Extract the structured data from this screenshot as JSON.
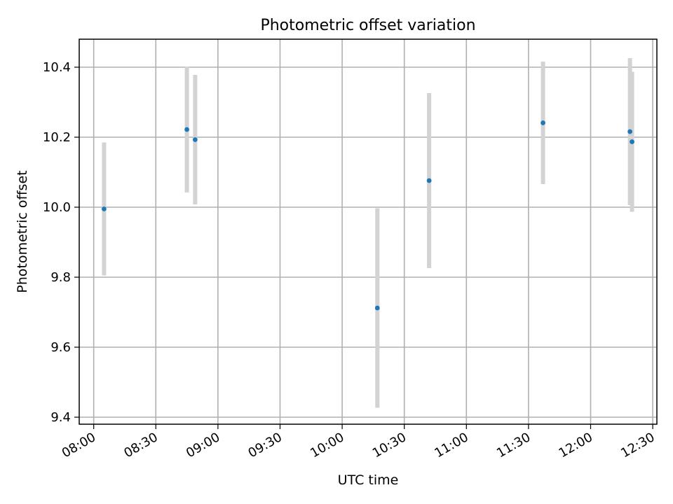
{
  "chart_data": {
    "type": "scatter",
    "title": "Photometric offset variation",
    "xlabel": "UTC time",
    "ylabel": "Photometric offset",
    "x_ticks": [
      "08:00",
      "08:30",
      "09:00",
      "09:30",
      "10:00",
      "10:30",
      "11:00",
      "11:30",
      "12:00",
      "12:30"
    ],
    "y_ticks": [
      "9.4",
      "9.6",
      "9.8",
      "10.0",
      "10.2",
      "10.4"
    ],
    "xlim": [
      "07:53",
      "12:32"
    ],
    "ylim": [
      9.38,
      10.48
    ],
    "grid": true,
    "series": [
      {
        "marker_color": "#1f77b4",
        "errorbar_color": "#d3d3d3",
        "points": [
          {
            "time": "08:05",
            "y": 9.995,
            "yerr": 0.19
          },
          {
            "time": "08:45",
            "y": 10.222,
            "yerr": 0.18
          },
          {
            "time": "08:49",
            "y": 10.193,
            "yerr": 0.185
          },
          {
            "time": "10:17",
            "y": 9.712,
            "yerr": 0.285
          },
          {
            "time": "10:42",
            "y": 10.076,
            "yerr": 0.25
          },
          {
            "time": "11:37",
            "y": 10.241,
            "yerr": 0.175
          },
          {
            "time": "12:19",
            "y": 10.216,
            "yerr": 0.21
          },
          {
            "time": "12:20",
            "y": 10.187,
            "yerr": 0.2
          }
        ]
      }
    ]
  }
}
